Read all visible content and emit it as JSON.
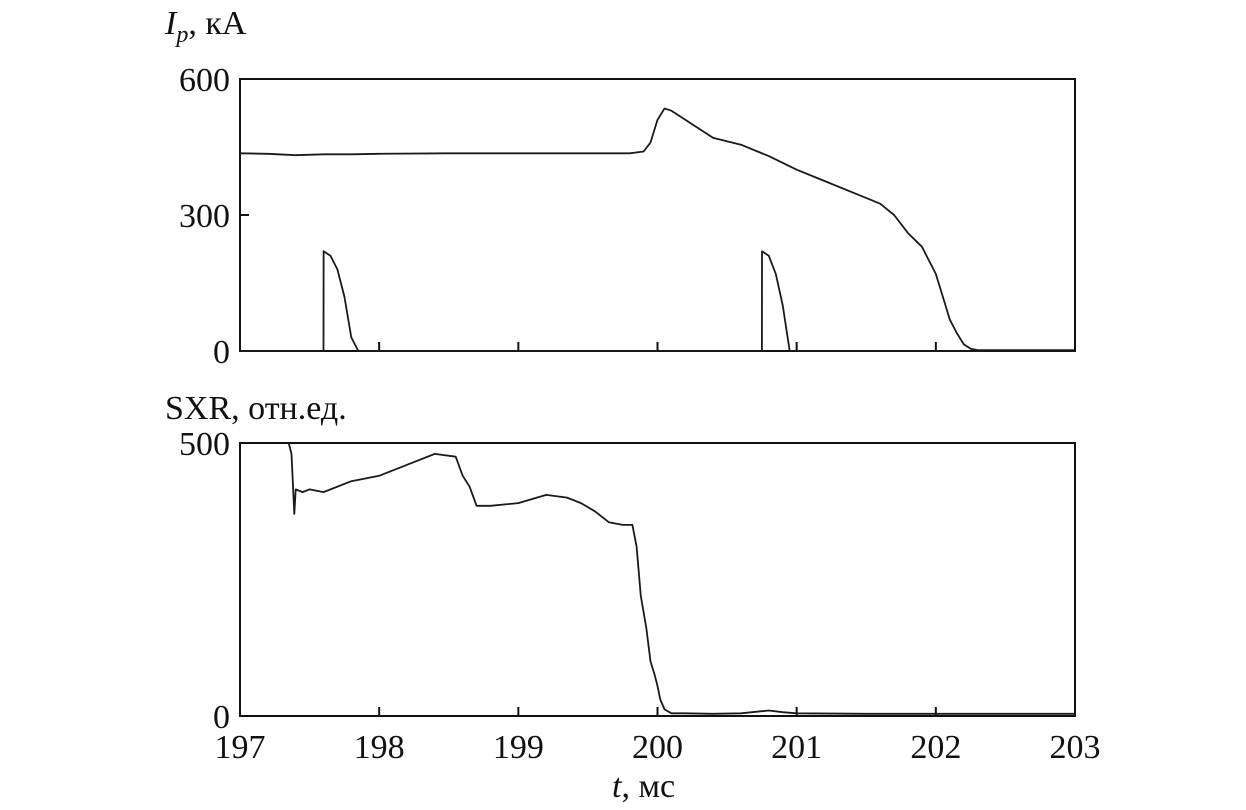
{
  "chart_data": [
    {
      "type": "line",
      "ylabel_symbol": "I",
      "ylabel_sub": "p",
      "ylabel_unit": ", кА",
      "xlim": [
        197,
        203
      ],
      "ylim": [
        0,
        600
      ],
      "yticks": [
        0,
        300,
        600
      ],
      "yticklabels": [
        "0",
        "300",
        "600"
      ],
      "xticks": [
        198,
        199,
        200,
        201,
        202,
        203
      ],
      "grid": false,
      "colors": {
        "line": "#1a1a1a",
        "axis": "#111111"
      },
      "series": [
        {
          "x": [
            197.0,
            197.2,
            197.4,
            197.6,
            197.8,
            198.0,
            198.5,
            199.0,
            199.5,
            199.8,
            199.9,
            199.95,
            200.0,
            200.05,
            200.1,
            200.2,
            200.3,
            200.4,
            200.6,
            200.8,
            201.0,
            201.2,
            201.4,
            201.6,
            201.7,
            201.8,
            201.9,
            202.0,
            202.05,
            202.1,
            202.15,
            202.2,
            202.25,
            202.3,
            202.5,
            203.0
          ],
          "y": [
            436,
            435,
            432,
            434,
            434,
            435,
            436,
            436,
            436,
            436,
            440,
            460,
            510,
            535,
            530,
            510,
            490,
            470,
            455,
            430,
            400,
            375,
            350,
            325,
            300,
            260,
            230,
            170,
            120,
            70,
            40,
            15,
            5,
            2,
            2,
            2
          ]
        },
        {
          "x": [
            197.0,
            197.6,
            197.601,
            197.65,
            197.7,
            197.75,
            197.8,
            197.85,
            200.75,
            200.751,
            200.8,
            200.85,
            200.9,
            200.95,
            203.0
          ],
          "y": [
            0,
            0,
            220,
            210,
            180,
            120,
            30,
            0,
            0,
            220,
            210,
            170,
            100,
            0,
            0
          ]
        }
      ]
    },
    {
      "type": "line",
      "ylabel": "SXR, отн.ед.",
      "xlabel_symbol": "t",
      "xlabel_unit": ", мс",
      "xlim": [
        197,
        203
      ],
      "ylim": [
        0,
        500
      ],
      "yticks": [
        0,
        500
      ],
      "yticklabels": [
        "0",
        "500"
      ],
      "xticks": [
        197,
        198,
        199,
        200,
        201,
        202,
        203
      ],
      "xticklabels": [
        "197",
        "198",
        "199",
        "200",
        "201",
        "202",
        "203"
      ],
      "grid": false,
      "colors": {
        "line": "#1a1a1a",
        "axis": "#111111"
      },
      "series": [
        {
          "x": [
            197.35,
            197.37,
            197.39,
            197.4,
            197.45,
            197.5,
            197.6,
            197.8,
            198.0,
            198.2,
            198.4,
            198.55,
            198.6,
            198.65,
            198.7,
            198.8,
            199.0,
            199.2,
            199.35,
            199.45,
            199.55,
            199.65,
            199.75,
            199.82,
            199.85,
            199.88,
            199.92,
            199.95,
            199.98,
            200.0,
            200.02,
            200.05,
            200.1,
            200.2,
            200.4,
            200.6,
            200.8,
            200.9,
            201.0,
            201.5,
            202.0,
            202.5,
            203.0
          ],
          "y": [
            500,
            480,
            370,
            415,
            410,
            415,
            410,
            430,
            440,
            460,
            480,
            475,
            440,
            420,
            385,
            385,
            390,
            405,
            400,
            390,
            375,
            355,
            350,
            350,
            310,
            220,
            160,
            100,
            75,
            55,
            30,
            12,
            5,
            5,
            4,
            5,
            10,
            7,
            5,
            4,
            4,
            4,
            4
          ]
        }
      ]
    }
  ]
}
